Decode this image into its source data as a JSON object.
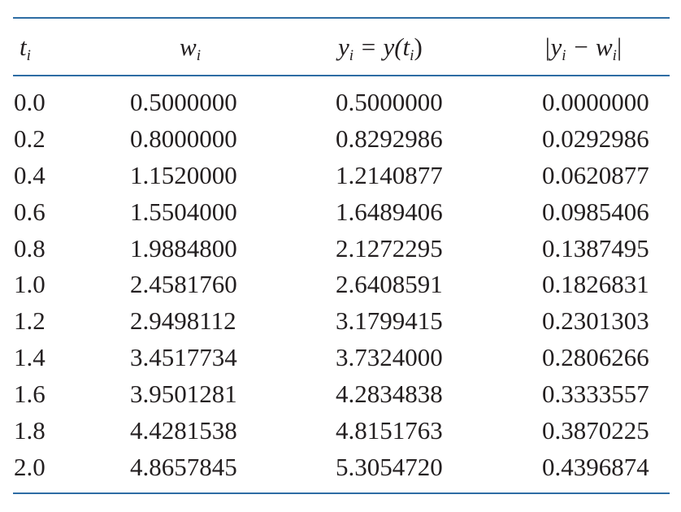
{
  "table": {
    "headers": [
      {
        "base": "t",
        "sub": "i"
      },
      {
        "base": "w",
        "sub": "i"
      },
      {
        "base": "y",
        "sub": "i",
        "rest": " = y(t",
        "sub2": "i",
        "tail": ")"
      },
      {
        "pre": "|y",
        "sub": "i",
        "mid": " − w",
        "sub2": "i",
        "tail": "|"
      }
    ],
    "rows": [
      [
        "0.0",
        "0.5000000",
        "0.5000000",
        "0.0000000"
      ],
      [
        "0.2",
        "0.8000000",
        "0.8292986",
        "0.0292986"
      ],
      [
        "0.4",
        "1.1520000",
        "1.2140877",
        "0.0620877"
      ],
      [
        "0.6",
        "1.5504000",
        "1.6489406",
        "0.0985406"
      ],
      [
        "0.8",
        "1.9884800",
        "2.1272295",
        "0.1387495"
      ],
      [
        "1.0",
        "2.4581760",
        "2.6408591",
        "0.1826831"
      ],
      [
        "1.2",
        "2.9498112",
        "3.1799415",
        "0.2301303"
      ],
      [
        "1.4",
        "3.4517734",
        "3.7324000",
        "0.2806266"
      ],
      [
        "1.6",
        "3.9501281",
        "4.2834838",
        "0.3333557"
      ],
      [
        "1.8",
        "4.4281538",
        "4.8151763",
        "0.3870225"
      ],
      [
        "2.0",
        "4.8657845",
        "5.3054720",
        "0.4396874"
      ]
    ]
  },
  "colors": {
    "rule": "#2e6da4",
    "text": "#231f20"
  }
}
